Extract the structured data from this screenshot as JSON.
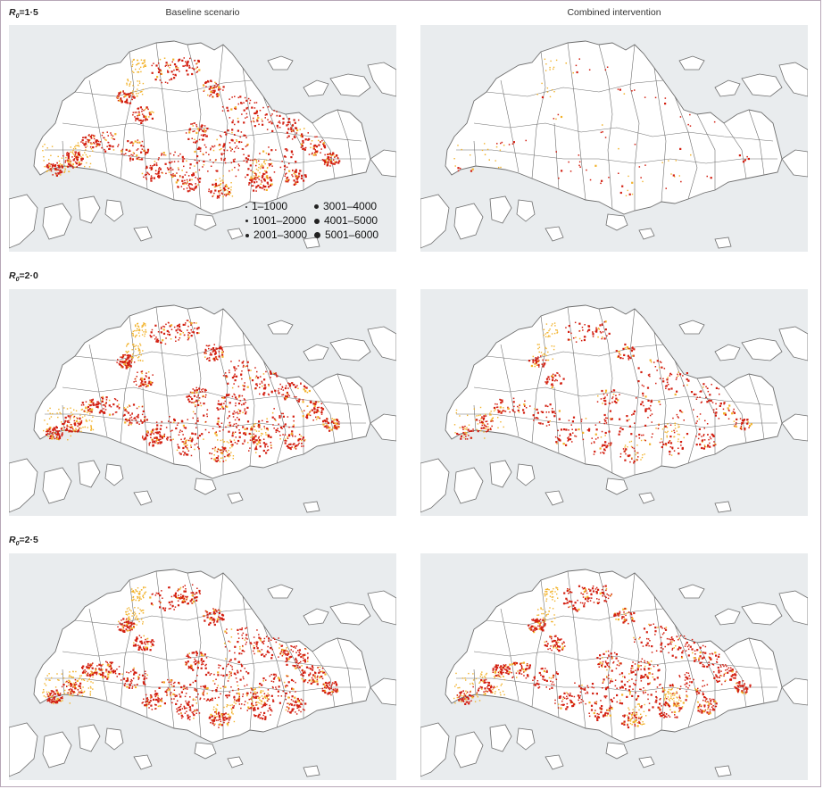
{
  "columns": {
    "baseline": "Baseline scenario",
    "combined": "Combined intervention"
  },
  "rows": [
    {
      "label_main": "R",
      "label_sub": "0",
      "label_value": "=1·5",
      "density_baseline": 0.85,
      "density_combined": 0.06
    },
    {
      "label_main": "R",
      "label_sub": "0",
      "label_value": "=2·0",
      "density_baseline": 0.9,
      "density_combined": 0.5
    },
    {
      "label_main": "R",
      "label_sub": "0",
      "label_value": "=2·5",
      "density_baseline": 1.0,
      "density_combined": 0.85
    }
  ],
  "legend": {
    "items": [
      {
        "label": "1–1000",
        "size": "smallest"
      },
      {
        "label": "1001–2000",
        "size": "small"
      },
      {
        "label": "2001–3000",
        "size": "medium"
      },
      {
        "label": "3001–4000",
        "size": "medium-large"
      },
      {
        "label": "4001–5000",
        "size": "large"
      },
      {
        "label": "5001–6000",
        "size": "largest"
      }
    ]
  },
  "colors": {
    "sea": "#e9ecee",
    "land": "#ffffff",
    "boundary": "#6f6f6f",
    "low_case": "#f2b22a",
    "high_case": "#d31e10"
  }
}
